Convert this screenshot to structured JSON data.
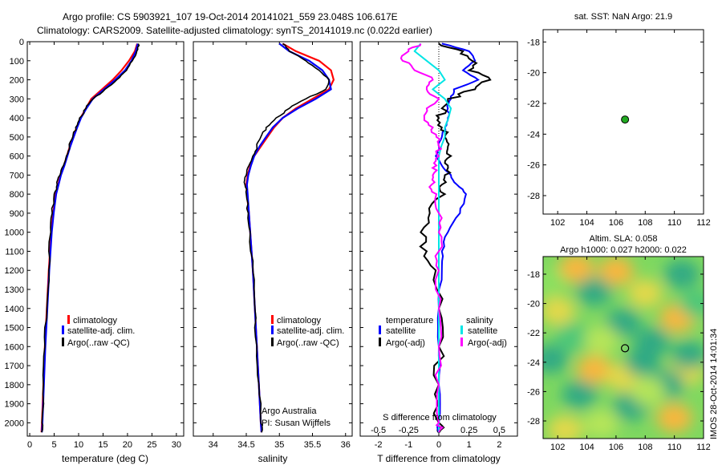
{
  "header": {
    "line1": "Argo profile: CS 5903921_107 19-Oct-2014 20141021_559 23.048S 106.617E",
    "line2": "Climatology: CARS2009. Satellite-adjusted climatology: synTS_20141019.nc (0.022d earlier)"
  },
  "colors": {
    "climatology": "#ff0000",
    "satellite": "#0000ff",
    "argo": "#000000",
    "salinity_satellite": "#00e5e5",
    "salinity_argo": "#ff00ff"
  },
  "chart_data": [
    {
      "id": "temperature",
      "type": "line",
      "xlabel": "temperature (deg C)",
      "ylabel": "",
      "xlim": [
        -0.5,
        31.5
      ],
      "ylim": [
        2070,
        0
      ],
      "xticks": [
        "0",
        "5",
        "10",
        "15",
        "20",
        "25",
        "30"
      ],
      "xtick_values": [
        0,
        5,
        10,
        15,
        20,
        25,
        30
      ],
      "yticks": [
        "0",
        "100",
        "200",
        "300",
        "400",
        "500",
        "600",
        "700",
        "800",
        "900",
        "1000",
        "1100",
        "1200",
        "1300",
        "1400",
        "1500",
        "1600",
        "1700",
        "1800",
        "1900",
        "2000"
      ],
      "ytick_values": [
        0,
        100,
        200,
        300,
        400,
        500,
        600,
        700,
        800,
        900,
        1000,
        1100,
        1200,
        1300,
        1400,
        1500,
        1600,
        1700,
        1800,
        1900,
        2000
      ],
      "depth": [
        10,
        50,
        100,
        150,
        200,
        250,
        300,
        350,
        400,
        450,
        500,
        550,
        600,
        650,
        700,
        750,
        800,
        900,
        1000,
        1200,
        1400,
        1600,
        1800,
        2000,
        2050
      ],
      "series": [
        {
          "name": "climatology",
          "values": [
            22.0,
            21.5,
            20.3,
            18.8,
            17.0,
            14.8,
            12.6,
            11.5,
            10.4,
            9.6,
            8.9,
            8.2,
            7.6,
            7.0,
            6.3,
            5.8,
            5.3,
            4.8,
            4.4,
            3.9,
            3.5,
            3.1,
            2.8,
            2.5,
            2.4
          ]
        },
        {
          "name": "satellite-adj. clim.",
          "values": [
            22.1,
            21.7,
            20.8,
            19.5,
            17.5,
            15.2,
            12.9,
            11.6,
            10.5,
            9.7,
            9.0,
            8.3,
            7.7,
            7.1,
            6.4,
            5.9,
            5.4,
            4.9,
            4.5,
            4.0,
            3.6,
            3.2,
            2.9,
            2.6,
            2.5
          ]
        },
        {
          "name": "Argo(..raw -QC)",
          "values": [
            22.2,
            21.9,
            21.0,
            19.8,
            17.8,
            15.4,
            13.0,
            11.5,
            10.2,
            9.4,
            8.8,
            8.1,
            7.5,
            6.9,
            6.2,
            5.6,
            5.0,
            4.6,
            4.3,
            3.9,
            3.5,
            3.1,
            2.8,
            2.5,
            2.4
          ]
        }
      ],
      "legend": [
        "climatology",
        "satellite-adj. clim.",
        "Argo(..raw -QC)"
      ],
      "legend_position": "bottom-left"
    },
    {
      "id": "salinity",
      "type": "line",
      "xlabel": "salinity",
      "xlim": [
        33.7,
        36.1
      ],
      "ylim": [
        2070,
        0
      ],
      "xticks": [
        "34",
        "34.5",
        "35",
        "35.5",
        "36"
      ],
      "xtick_values": [
        34,
        34.5,
        35,
        35.5,
        36
      ],
      "depth": [
        10,
        50,
        100,
        150,
        200,
        250,
        300,
        350,
        400,
        450,
        500,
        550,
        600,
        650,
        700,
        750,
        800,
        900,
        1000,
        1200,
        1400,
        1600,
        1800,
        2000,
        2050
      ],
      "series": [
        {
          "name": "climatology",
          "values": [
            35.05,
            35.25,
            35.6,
            35.78,
            35.82,
            35.75,
            35.5,
            35.25,
            35.05,
            34.92,
            34.82,
            34.72,
            34.62,
            34.56,
            34.52,
            34.5,
            34.51,
            34.54,
            34.56,
            34.6,
            34.63,
            34.66,
            34.69,
            34.72,
            34.73
          ]
        },
        {
          "name": "satellite-adj. clim.",
          "values": [
            35.0,
            35.15,
            35.45,
            35.65,
            35.75,
            35.78,
            35.55,
            35.28,
            35.05,
            34.9,
            34.8,
            34.7,
            34.62,
            34.57,
            34.53,
            34.51,
            34.52,
            34.54,
            34.56,
            34.6,
            34.63,
            34.66,
            34.69,
            34.72,
            34.73
          ]
        },
        {
          "name": "Argo(..raw -QC)",
          "values": [
            35.05,
            35.15,
            35.4,
            35.6,
            35.75,
            35.7,
            35.4,
            35.15,
            34.95,
            34.8,
            34.72,
            34.66,
            34.6,
            34.54,
            34.5,
            34.48,
            34.5,
            34.53,
            34.56,
            34.6,
            34.63,
            34.66,
            34.69,
            34.72,
            34.73
          ]
        }
      ],
      "legend": [
        "climatology",
        "satellite-adj. clim.",
        "Argo(..raw -QC)"
      ],
      "legend_position": "bottom-left",
      "annotation": [
        "Argo Australia",
        "PI: Susan Wijffels"
      ]
    },
    {
      "id": "difference",
      "type": "line",
      "xlabel": "T difference from climatology",
      "xlabel_top": "S difference from climatology",
      "xlim": [
        -2.6,
        2.6
      ],
      "ylim": [
        2070,
        0
      ],
      "xticks": [
        "-2",
        "-1",
        "0",
        "1",
        "2"
      ],
      "xtick_values": [
        -2,
        -1,
        0,
        1,
        2
      ],
      "xticks_s": [
        "-0.5",
        "-0.25",
        "0",
        "0.25",
        "0.5"
      ],
      "xtick_values_s": [
        -0.5,
        -0.25,
        0,
        0.25,
        0.5
      ],
      "depth": [
        10,
        50,
        100,
        150,
        200,
        250,
        300,
        350,
        400,
        450,
        500,
        550,
        600,
        650,
        700,
        750,
        800,
        900,
        1000,
        1100,
        1200,
        1400,
        1600,
        1800,
        2000,
        2050
      ],
      "series": [
        {
          "name": "temperature satellite",
          "group": "temperature",
          "values": [
            0.1,
            1.0,
            1.2,
            0.8,
            1.3,
            0.5,
            0.4,
            0.3,
            0.3,
            0.2,
            0.1,
            0.0,
            -0.1,
            0.1,
            0.4,
            0.6,
            0.9,
            0.7,
            0.3,
            0.1,
            0.1,
            0.0,
            0.0,
            0.0,
            0.0,
            0.0
          ]
        },
        {
          "name": "temperature Argo(-adj)",
          "group": "temperature",
          "values": [
            0.0,
            0.8,
            1.1,
            1.0,
            1.7,
            1.2,
            0.3,
            0.1,
            0.0,
            0.1,
            0.2,
            0.3,
            0.4,
            0.3,
            0.2,
            0.1,
            0.2,
            -0.3,
            -0.6,
            -0.4,
            -0.1,
            0.0,
            0.0,
            0.0,
            0.0,
            0.0
          ]
        },
        {
          "name": "salinity satellite",
          "group": "salinity",
          "values": [
            -0.15,
            -0.2,
            -0.1,
            0.0,
            0.05,
            -0.05,
            0.05,
            0.1,
            0.08,
            0.05,
            0.05,
            0.02,
            0.0,
            0.0,
            0.0,
            0.0,
            0.0,
            0.0,
            0.0,
            0.0,
            0.0,
            0.0,
            0.0,
            0.0,
            0.0,
            0.0
          ]
        },
        {
          "name": "salinity Argo(-adj)",
          "group": "salinity",
          "values": [
            -0.15,
            -0.25,
            -0.3,
            -0.2,
            -0.05,
            -0.1,
            0.0,
            -0.1,
            -0.12,
            -0.05,
            -0.02,
            0.0,
            0.0,
            -0.02,
            -0.05,
            -0.06,
            -0.02,
            0.0,
            0.0,
            0.0,
            0.0,
            0.0,
            0.0,
            0.0,
            0.0,
            0.0
          ]
        }
      ],
      "legend_temperature_title": "temperature",
      "legend_salinity_title": "salinity",
      "legend_temperature": [
        "satellite",
        "Argo(-adj)"
      ],
      "legend_salinity": [
        "satellite",
        "Argo(-adj)"
      ],
      "legend_position": "bottom"
    },
    {
      "id": "sst_map",
      "type": "scatter",
      "title": "sat. SST: NaN Argo: 21.9",
      "xlim": [
        101,
        112
      ],
      "ylim": [
        -29.2,
        -17.2
      ],
      "xticks": [
        "102",
        "104",
        "106",
        "108",
        "110",
        "112"
      ],
      "xtick_values": [
        102,
        104,
        106,
        108,
        110,
        112
      ],
      "yticks": [
        "-18",
        "-20",
        "-22",
        "-24",
        "-26",
        "-28"
      ],
      "ytick_values": [
        -18,
        -20,
        -22,
        -24,
        -26,
        -28
      ],
      "points": [
        {
          "lon": 106.617,
          "lat": -23.048
        }
      ]
    },
    {
      "id": "sla_map",
      "type": "heatmap",
      "title_line1": "Altim. SLA: 0.058",
      "title_line2": "Argo h1000: 0.027 h2000: 0.022",
      "xlim": [
        101,
        112
      ],
      "ylim": [
        -29.2,
        -16.8
      ],
      "xticks": [
        "102",
        "104",
        "106",
        "108",
        "110",
        "112"
      ],
      "xtick_values": [
        102,
        104,
        106,
        108,
        110,
        112
      ],
      "yticks": [
        "-18",
        "-20",
        "-22",
        "-24",
        "-26",
        "-28"
      ],
      "ytick_values": [
        -18,
        -20,
        -22,
        -24,
        -26,
        -28
      ],
      "points": [
        {
          "lon": 106.617,
          "lat": -23.048
        }
      ],
      "blobs": [
        {
          "lon": 103.3,
          "lat": -17.6,
          "v": 1.0
        },
        {
          "lon": 106.0,
          "lat": -17.8,
          "v": 0.8
        },
        {
          "lon": 110.5,
          "lat": -18.0,
          "v": -0.6
        },
        {
          "lon": 104.5,
          "lat": -19.2,
          "v": -0.9
        },
        {
          "lon": 108.0,
          "lat": -19.3,
          "v": 0.7
        },
        {
          "lon": 102.0,
          "lat": -20.5,
          "v": 0.6
        },
        {
          "lon": 110.2,
          "lat": -21.0,
          "v": 0.9
        },
        {
          "lon": 103.0,
          "lat": -22.3,
          "v": -0.5
        },
        {
          "lon": 106.5,
          "lat": -21.3,
          "v": -0.6
        },
        {
          "lon": 108.5,
          "lat": -22.6,
          "v": -1.0
        },
        {
          "lon": 101.5,
          "lat": -23.8,
          "v": -0.7
        },
        {
          "lon": 104.5,
          "lat": -24.5,
          "v": 0.9
        },
        {
          "lon": 106.5,
          "lat": -25.0,
          "v": 0.7
        },
        {
          "lon": 110.8,
          "lat": -24.6,
          "v": 0.7
        },
        {
          "lon": 111.0,
          "lat": -23.5,
          "v": -0.9
        },
        {
          "lon": 103.5,
          "lat": -26.2,
          "v": -0.8
        },
        {
          "lon": 109.5,
          "lat": -25.5,
          "v": -0.9
        },
        {
          "lon": 107.0,
          "lat": -27.0,
          "v": -0.8
        },
        {
          "lon": 110.0,
          "lat": -27.8,
          "v": 0.8
        },
        {
          "lon": 102.5,
          "lat": -28.6,
          "v": 0.6
        },
        {
          "lon": 105.0,
          "lat": -28.2,
          "v": 0.2
        },
        {
          "lon": 108.2,
          "lat": -26.0,
          "v": 0.3
        },
        {
          "lon": 111.5,
          "lat": -20.0,
          "v": -0.5
        },
        {
          "lon": 101.3,
          "lat": -18.5,
          "v": 0.1
        },
        {
          "lon": 105.0,
          "lat": -22.5,
          "v": 0.3
        },
        {
          "lon": 107.8,
          "lat": -24.0,
          "v": -0.7
        }
      ]
    }
  ],
  "footer": {
    "timestamp": "IMOS 28-Oct-2014 14:01:34"
  }
}
